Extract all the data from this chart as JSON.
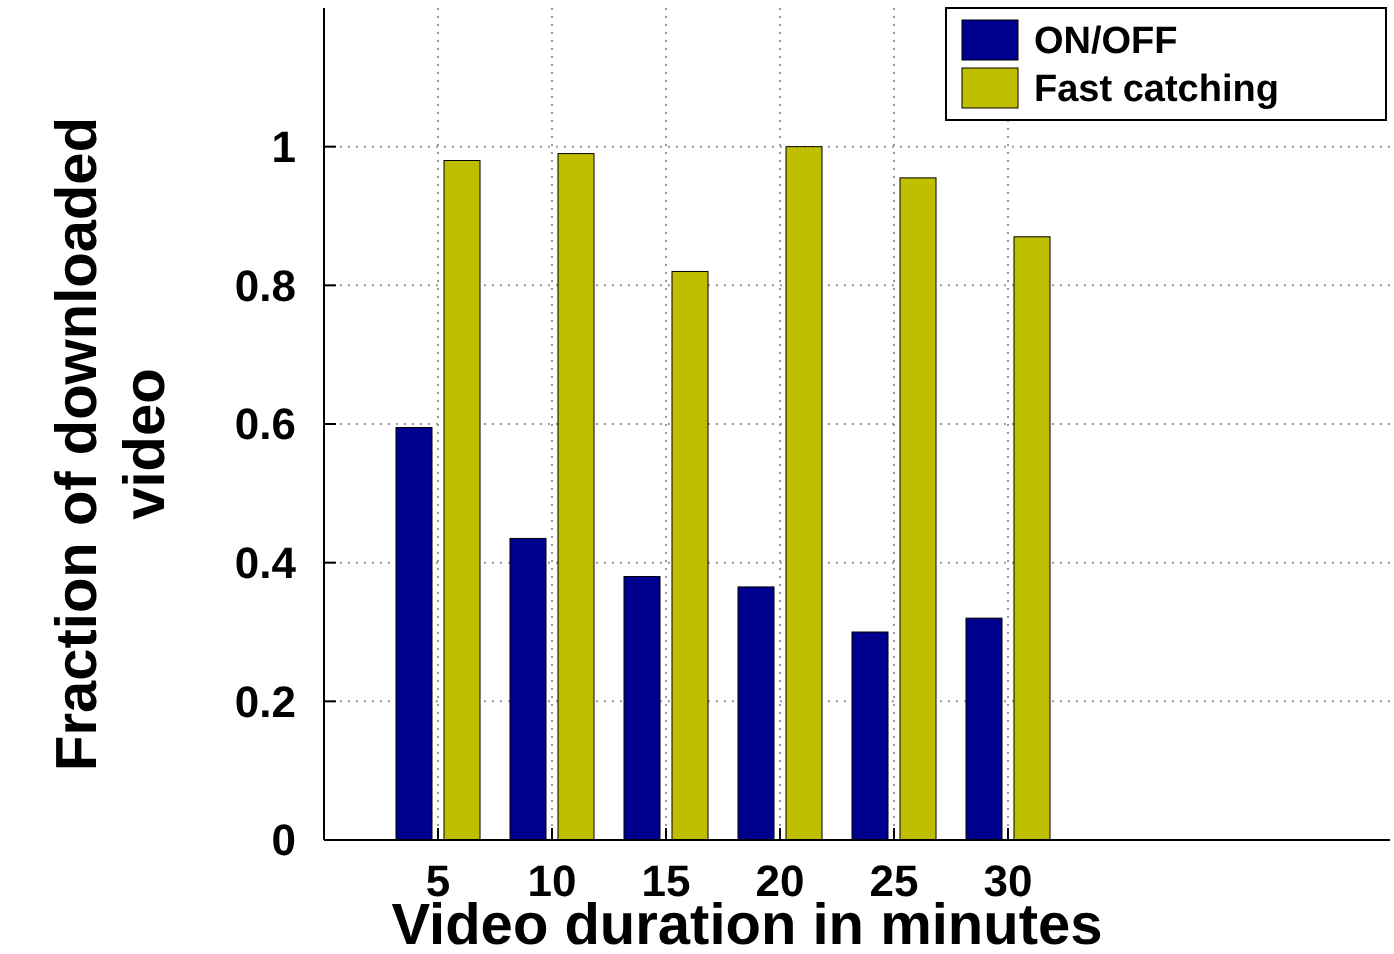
{
  "chart_data": {
    "type": "bar",
    "xlabel": "Video duration in minutes",
    "ylabel": "Fraction of downloaded video",
    "categories": [
      "5",
      "10",
      "15",
      "20",
      "25",
      "30"
    ],
    "series": [
      {
        "name": "ON/OFF",
        "color": "#00008f",
        "values": [
          0.595,
          0.435,
          0.38,
          0.365,
          0.3,
          0.32
        ]
      },
      {
        "name": "Fast catching",
        "color": "#bfbf00",
        "values": [
          0.98,
          0.99,
          0.82,
          1.0,
          0.955,
          0.87
        ]
      }
    ],
    "ylim": [
      0,
      1.2
    ],
    "yticks": [
      0,
      0.2,
      0.4,
      0.6,
      0.8,
      1
    ],
    "grid": true,
    "legend": "top right"
  }
}
